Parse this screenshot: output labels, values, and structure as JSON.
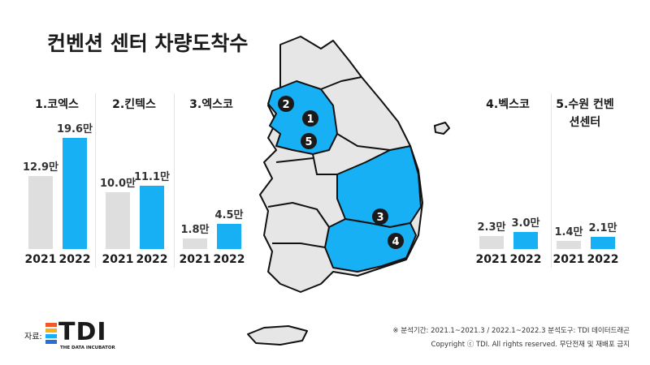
{
  "title": "컨벤션 센터 차량도착수",
  "chart_data": [
    {
      "type": "bar",
      "title": "1.코엑스",
      "categories": [
        "2021",
        "2022"
      ],
      "values": [
        12.9,
        19.6
      ],
      "value_labels": [
        "12.9만",
        "19.6만"
      ],
      "colors": [
        "#dedede",
        "#17b0f5"
      ]
    },
    {
      "type": "bar",
      "title": "2.킨텍스",
      "categories": [
        "2021",
        "2022"
      ],
      "values": [
        10.0,
        11.1
      ],
      "value_labels": [
        "10.0만",
        "11.1만"
      ],
      "colors": [
        "#dedede",
        "#17b0f5"
      ]
    },
    {
      "type": "bar",
      "title": "3.엑스코",
      "categories": [
        "2021",
        "2022"
      ],
      "values": [
        1.8,
        4.5
      ],
      "value_labels": [
        "1.8만",
        "4.5만"
      ],
      "colors": [
        "#dedede",
        "#17b0f5"
      ]
    },
    {
      "type": "bar",
      "title": "4.벡스코",
      "categories": [
        "2021",
        "2022"
      ],
      "values": [
        2.3,
        3.0
      ],
      "value_labels": [
        "2.3만",
        "3.0만"
      ],
      "colors": [
        "#dedede",
        "#17b0f5"
      ]
    },
    {
      "type": "bar",
      "title": "5.수원 컨벤션센터",
      "categories": [
        "2021",
        "2022"
      ],
      "values": [
        1.4,
        2.1
      ],
      "value_labels": [
        "1.4만",
        "2.1만"
      ],
      "colors": [
        "#dedede",
        "#17b0f5"
      ]
    }
  ],
  "map_markers": [
    2,
    1,
    5,
    3,
    4
  ],
  "source_label": "자료:",
  "logo": {
    "text": "TDI",
    "subtitle": "THE DATA INCUBATOR"
  },
  "notes": [
    "※ 분석기간: 2021.1~2021.3 / 2022.1~2022.3    분석도구: TDI 데이터드래곤",
    "Copyright ⓒ TDI. All rights reserved. 무단전재 및 재배포 금지"
  ]
}
